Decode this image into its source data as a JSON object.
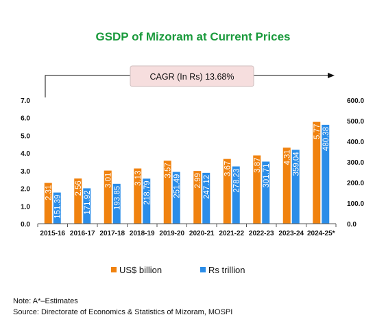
{
  "chart_data": {
    "type": "bar",
    "title": "GSDP of Mizoram at Current Prices",
    "categories": [
      "2015-16",
      "2016-17",
      "2017-18",
      "2018-19",
      "2019-20",
      "2020-21",
      "2021-22",
      "2022-23",
      "2023-24",
      "2024-25*"
    ],
    "series": [
      {
        "name": "US$ billion",
        "axis": "left",
        "color": "#f0820f",
        "values": [
          2.31,
          2.56,
          3.01,
          3.13,
          3.57,
          2.99,
          3.67,
          3.87,
          4.31,
          5.77
        ],
        "labels": [
          "2.31",
          "2.56",
          "3.01",
          "3.13",
          "3.57",
          "2.99",
          "3.67",
          "3.87",
          "4.31",
          "5.77"
        ]
      },
      {
        "name": "Rs trillion",
        "axis": "right",
        "color": "#2b8de8",
        "values": [
          151.39,
          171.92,
          193.85,
          218.79,
          251.49,
          247.12,
          278.23,
          301.71,
          359.04,
          480.38
        ],
        "labels": [
          "151.39",
          "171.92",
          "193.85",
          "218.79",
          "251.49",
          "247.12",
          "278.23",
          "301.71",
          "359.04",
          "480.38"
        ]
      }
    ],
    "left_axis": {
      "ylim": [
        0,
        7
      ],
      "ticks": [
        "0.0",
        "1.0",
        "2.0",
        "3.0",
        "4.0",
        "5.0",
        "6.0",
        "7.0"
      ]
    },
    "right_axis": {
      "ylim": [
        0,
        600
      ],
      "ticks": [
        "0.0",
        "100.0",
        "200.0",
        "300.0",
        "400.0",
        "500.0",
        "600.0"
      ]
    },
    "annotation": "CAGR (In Rs) 13.68%",
    "legend_position": "bottom",
    "grid": false
  },
  "footnotes": {
    "note": "Note: A*–Estimates",
    "source": "Source: Directorate of Economics & Statistics of Mizoram, MOSPI"
  }
}
